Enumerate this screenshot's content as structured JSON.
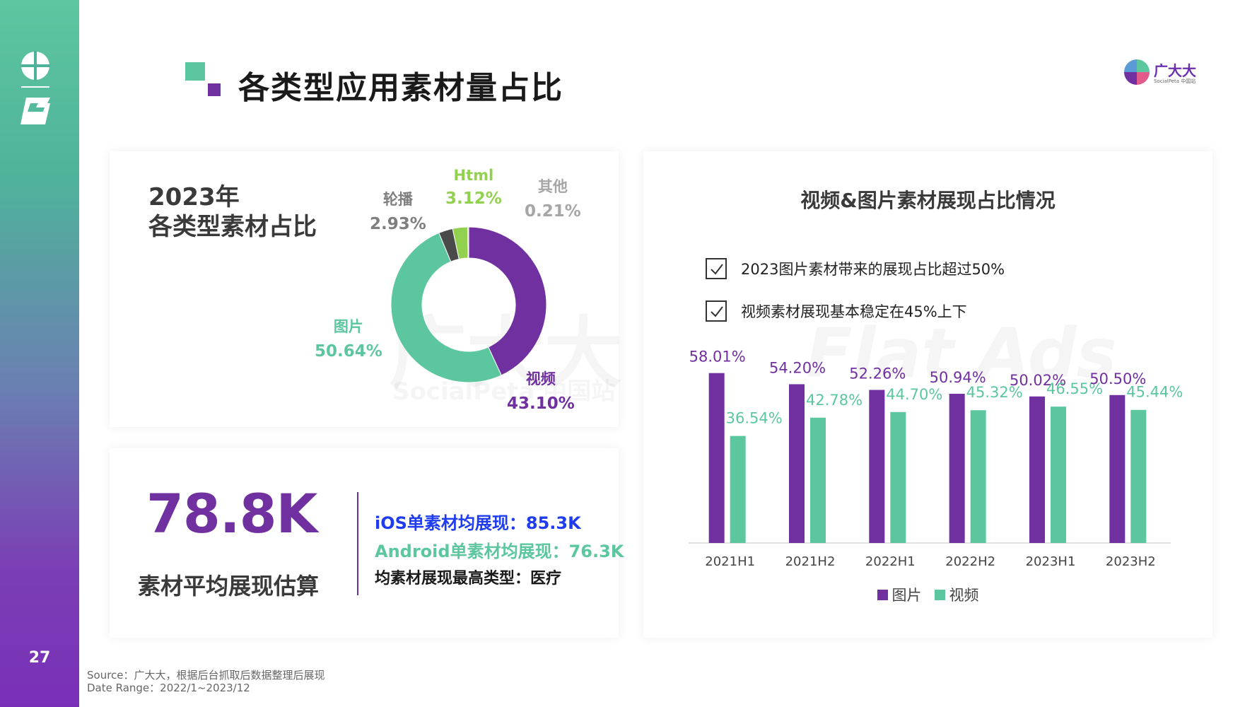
{
  "page": {
    "title": "各类型应用素材量占比",
    "number": "27",
    "source": "Source：广大大，根据后台抓取后数据整理后展现",
    "date_range": "Date Range：2022/1~2023/12"
  },
  "brand": {
    "name": "广大大",
    "sub": "SocialPeta 中国站"
  },
  "colors": {
    "purple": "#7030a0",
    "green": "#5cc79e",
    "lime": "#92d050",
    "dark": "#4a4a4a",
    "blue": "#1f3cf0"
  },
  "donut_card": {
    "heading_line1": "2023年",
    "heading_line2": "各类型素材占比",
    "watermark_cn": "广大大",
    "watermark_en": "SocialPeta 中国站"
  },
  "stats_card": {
    "big_number": "78.8K",
    "caption": "素材平均展现估算",
    "ios": "iOS单素材均展现：85.3K",
    "android": "Android单素材均展现：76.3K",
    "top_type": "均素材展现最高类型：医疗"
  },
  "bars_card": {
    "title": "视频&图片素材展现占比情况",
    "checks": [
      "2023图片素材带来的展现占比超过50%",
      "视频素材展现基本稳定在45%上下"
    ],
    "watermark": "Flat Ads"
  },
  "chart_data": [
    {
      "type": "pie",
      "title": "2023年 各类型素材占比",
      "slices": [
        {
          "label": "视频",
          "value": 43.1,
          "value_text": "43.10%",
          "color": "#7030a0"
        },
        {
          "label": "图片",
          "value": 50.64,
          "value_text": "50.64%",
          "color": "#5cc79e"
        },
        {
          "label": "轮播",
          "value": 2.93,
          "value_text": "2.93%",
          "color": "#4a4a4a"
        },
        {
          "label": "Html",
          "value": 3.12,
          "value_text": "3.12%",
          "color": "#92d050"
        },
        {
          "label": "其他",
          "value": 0.21,
          "value_text": "0.21%",
          "color": "#bfbfbf"
        }
      ]
    },
    {
      "type": "bar",
      "title": "视频&图片素材展现占比情况",
      "categories": [
        "2021H1",
        "2021H2",
        "2022H1",
        "2022H2",
        "2023H1",
        "2023H2"
      ],
      "series": [
        {
          "name": "图片",
          "color": "#7030a0",
          "values": [
            58.01,
            54.2,
            52.26,
            50.94,
            50.02,
            50.5
          ],
          "labels": [
            "58.01%",
            "54.20%",
            "52.26%",
            "50.94%",
            "50.02%",
            "50.50%"
          ]
        },
        {
          "name": "视频",
          "color": "#5cc79e",
          "values": [
            36.54,
            42.78,
            44.7,
            45.32,
            46.55,
            45.44
          ],
          "labels": [
            "36.54%",
            "42.78%",
            "44.70%",
            "45.32%",
            "46.55%",
            "45.44%"
          ]
        }
      ],
      "ylim": [
        0,
        70
      ]
    }
  ]
}
